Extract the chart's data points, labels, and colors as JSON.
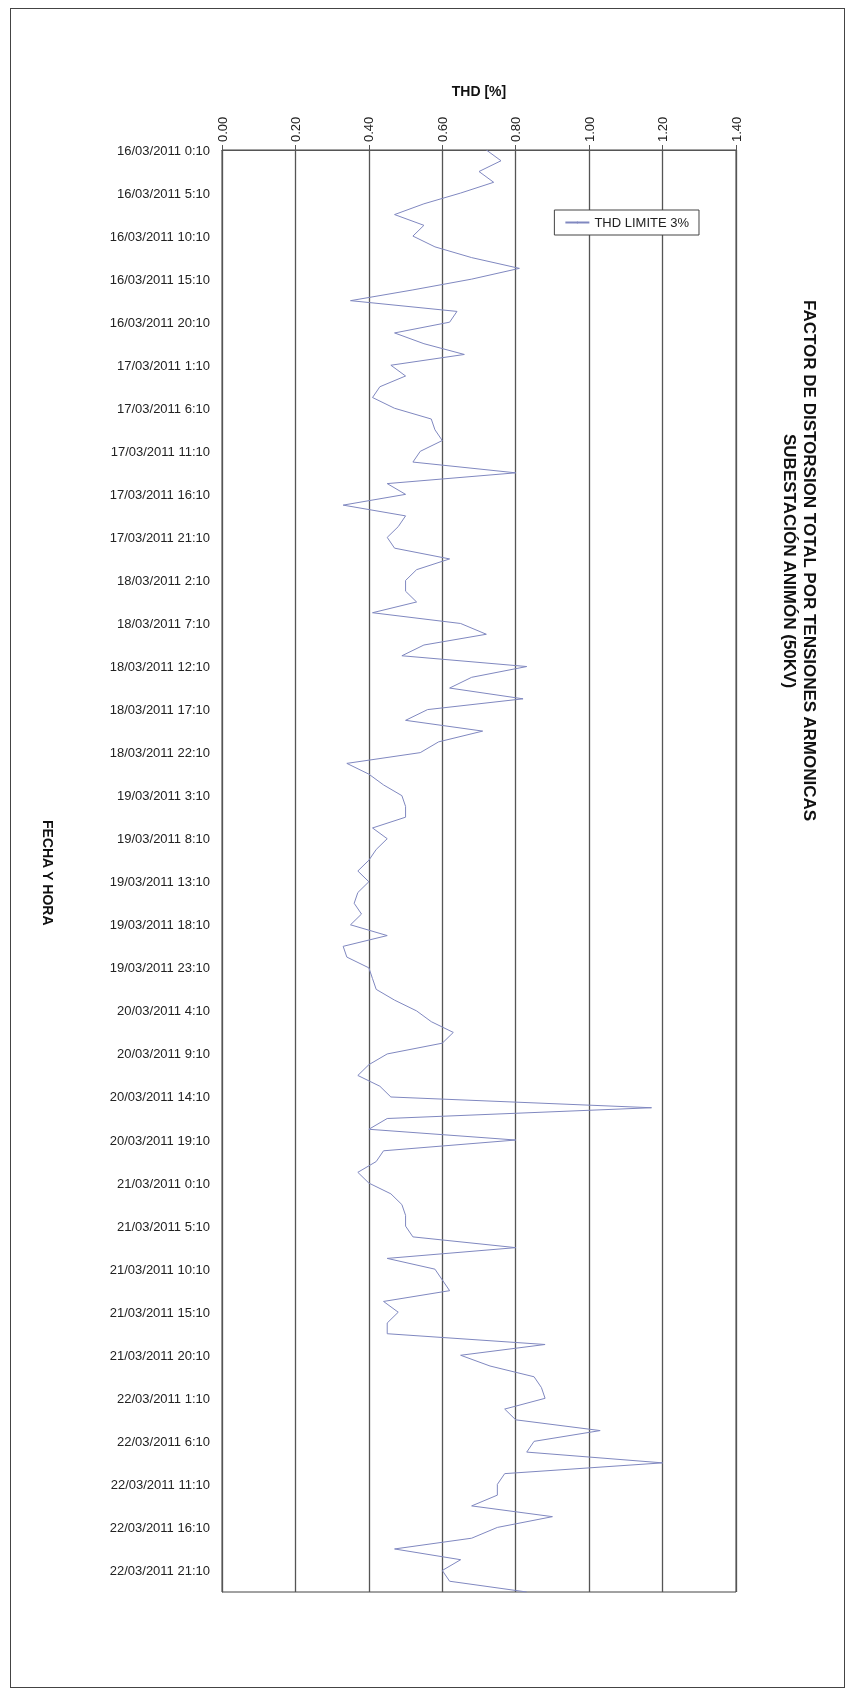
{
  "chart_data": {
    "type": "line",
    "orientation": "horizontal",
    "title": "FACTOR DE DISTORSION TOTAL POR TENSIONES ARMONICAS",
    "subtitle": "SUBESTACIÓN ANIMÓN (50KV)",
    "xlabel": "THD [%]",
    "ylabel": "FECHA Y HORA",
    "categories": [
      "16/03/2011 0:10",
      null,
      null,
      null,
      "16/03/2011 5:10",
      null,
      null,
      null,
      "16/03/2011 10:10",
      null,
      null,
      null,
      "16/03/2011 15:10",
      null,
      null,
      null,
      "16/03/2011 20:10",
      null,
      null,
      null,
      "17/03/2011 1:10",
      null,
      null,
      null,
      "17/03/2011 6:10",
      null,
      null,
      null,
      "17/03/2011 11:10",
      null,
      null,
      null,
      "17/03/2011 16:10",
      null,
      null,
      null,
      "17/03/2011 21:10",
      null,
      null,
      null,
      "18/03/2011 2:10",
      null,
      null,
      null,
      "18/03/2011 7:10",
      null,
      null,
      null,
      "18/03/2011 12:10",
      null,
      null,
      null,
      "18/03/2011 17:10",
      null,
      null,
      null,
      "18/03/2011 22:10",
      null,
      null,
      null,
      "19/03/2011 3:10",
      null,
      null,
      null,
      "19/03/2011 8:10",
      null,
      null,
      null,
      "19/03/2011 13:10",
      null,
      null,
      null,
      "19/03/2011 18:10",
      null,
      null,
      null,
      "19/03/2011 23:10",
      null,
      null,
      null,
      "20/03/2011 4:10",
      null,
      null,
      null,
      "20/03/2011 9:10",
      null,
      null,
      null,
      "20/03/2011 14:10",
      null,
      null,
      null,
      "20/03/2011 19:10",
      null,
      null,
      null,
      "21/03/2011 0:10",
      null,
      null,
      null,
      "21/03/2011 5:10",
      null,
      null,
      null,
      "21/03/2011 10:10",
      null,
      null,
      null,
      "21/03/2011 15:10",
      null,
      null,
      null,
      "21/03/2011 20:10",
      null,
      null,
      null,
      "22/03/2011 1:10",
      null,
      null,
      null,
      "22/03/2011 6:10",
      null,
      null,
      null,
      "22/03/2011 11:10",
      null,
      null,
      null,
      "22/03/2011 16:10",
      null,
      null,
      null,
      "22/03/2011 21:10",
      null,
      null
    ],
    "series": [
      {
        "name": "THD LIMITE 3%",
        "color": "#8088c0",
        "values": [
          0.72,
          0.76,
          0.7,
          0.74,
          0.65,
          0.55,
          0.47,
          0.55,
          0.52,
          0.58,
          0.68,
          0.81,
          0.68,
          0.52,
          0.35,
          0.64,
          0.62,
          0.47,
          0.55,
          0.66,
          0.46,
          0.5,
          0.43,
          0.41,
          0.47,
          0.57,
          0.58,
          0.6,
          0.54,
          0.52,
          0.8,
          0.45,
          0.5,
          0.33,
          0.5,
          0.48,
          0.45,
          0.47,
          0.62,
          0.53,
          0.5,
          0.5,
          0.53,
          0.41,
          0.65,
          0.72,
          0.55,
          0.49,
          0.83,
          0.68,
          0.62,
          0.82,
          0.56,
          0.5,
          0.71,
          0.59,
          0.54,
          0.34,
          0.4,
          0.44,
          0.49,
          0.5,
          0.5,
          0.41,
          0.45,
          0.42,
          0.4,
          0.37,
          0.4,
          0.37,
          0.36,
          0.38,
          0.35,
          0.45,
          0.33,
          0.34,
          0.4,
          0.41,
          0.42,
          0.47,
          0.53,
          0.57,
          0.63,
          0.6,
          0.45,
          0.4,
          0.37,
          0.43,
          0.46,
          1.17,
          0.45,
          0.4,
          0.8,
          0.44,
          0.42,
          0.37,
          0.4,
          0.46,
          0.49,
          0.5,
          0.5,
          0.52,
          0.8,
          0.45,
          0.58,
          0.6,
          0.62,
          0.44,
          0.48,
          0.45,
          0.45,
          0.88,
          0.65,
          0.73,
          0.85,
          0.87,
          0.88,
          0.77,
          0.8,
          1.03,
          0.85,
          0.83,
          1.2,
          0.77,
          0.75,
          0.75,
          0.68,
          0.9,
          0.75,
          0.68,
          0.47,
          0.65,
          0.6,
          0.62,
          0.83
        ]
      }
    ],
    "xlim": [
      0,
      1.4
    ],
    "xticks": [
      {
        "value": 0,
        "label": "0.00"
      },
      {
        "value": 0.2,
        "label": "0.20"
      },
      {
        "value": 0.4,
        "label": "0.40"
      },
      {
        "value": 0.6,
        "label": "0.60"
      },
      {
        "value": 0.8,
        "label": "0.80"
      },
      {
        "value": 1,
        "label": "1.00"
      },
      {
        "value": 1.2,
        "label": "1.20"
      },
      {
        "value": 1.4,
        "label": "1.40"
      }
    ],
    "grid": "x",
    "legend": "top right",
    "marker": "none"
  }
}
